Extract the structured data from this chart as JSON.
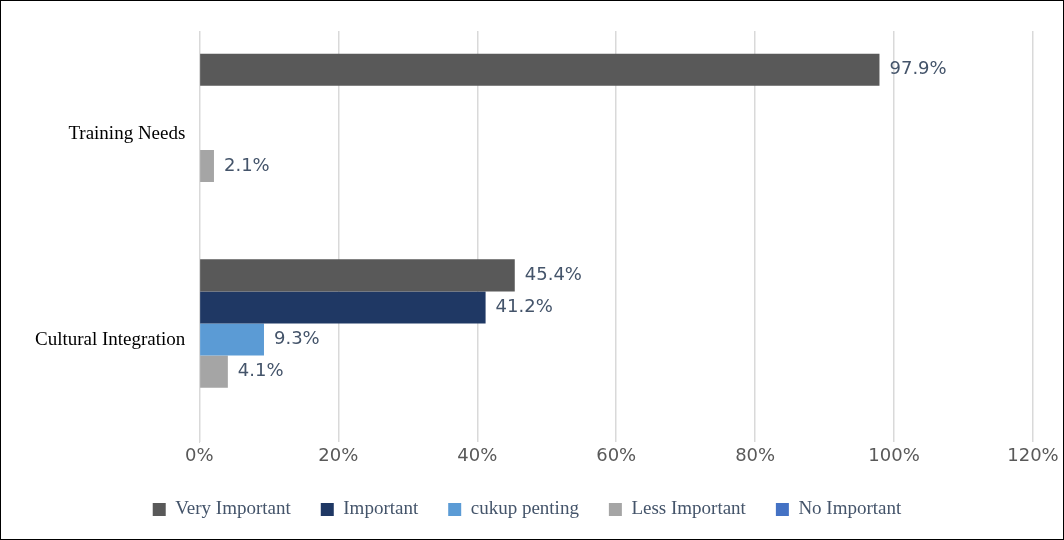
{
  "chart_data": {
    "type": "bar",
    "orientation": "horizontal",
    "categories": [
      "Training Needs",
      "Cultural Integration"
    ],
    "series": [
      {
        "name": "Very Important",
        "color": "#595959",
        "values": [
          97.9,
          45.4
        ],
        "value_labels": [
          "97.9%",
          "45.4%"
        ]
      },
      {
        "name": "Important",
        "color": "#1f3864",
        "values": [
          null,
          41.2
        ],
        "value_labels": [
          null,
          "41.2%"
        ]
      },
      {
        "name": "cukup penting",
        "color": "#5b9bd5",
        "values": [
          null,
          9.3
        ],
        "value_labels": [
          null,
          "9.3%"
        ]
      },
      {
        "name": "Less Important",
        "color": "#a5a5a5",
        "values": [
          2.1,
          4.1
        ],
        "value_labels": [
          "2.1%",
          "4.1%"
        ]
      },
      {
        "name": "No Important",
        "color": "#4472c4",
        "values": [
          null,
          null
        ],
        "value_labels": [
          null,
          null
        ]
      }
    ],
    "xlim": [
      0,
      120
    ],
    "xticks": [
      {
        "value": 0,
        "label": "0%"
      },
      {
        "value": 20,
        "label": "20%"
      },
      {
        "value": 40,
        "label": "40%"
      },
      {
        "value": 60,
        "label": "60%"
      },
      {
        "value": 80,
        "label": "80%"
      },
      {
        "value": 100,
        "label": "100%"
      },
      {
        "value": 120,
        "label": "120%"
      }
    ],
    "grid": "x",
    "legend": "bottom"
  }
}
